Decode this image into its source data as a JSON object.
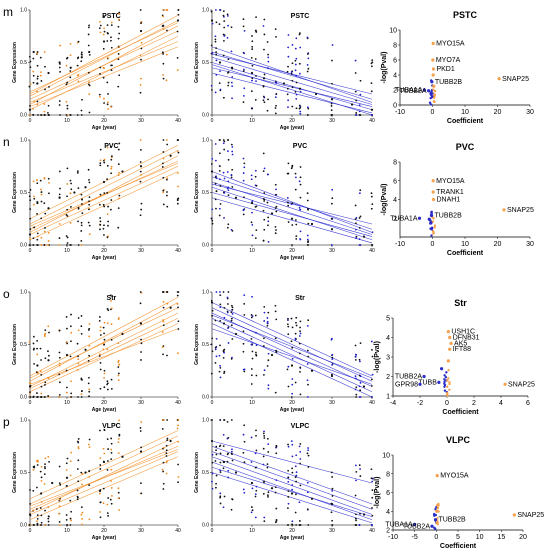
{
  "colors": {
    "up": "#F28A1E",
    "down": "#1F1FD0",
    "dot": "#111111",
    "volcano_up": "#F5A04A",
    "volcano_down": "#2B2BC8",
    "volcano_grey": "#9A9A9A"
  },
  "common": {
    "scatter_x_ticks": [
      "0",
      "10",
      "20",
      "30",
      "40"
    ],
    "scatter_y_ticks": [
      "0.0",
      "0.5",
      "1.0"
    ],
    "scatter_xlabel": "Age (year)",
    "scatter_ylabel": "Gene Expression",
    "volcano_xlabel": "Coefficient",
    "volcano_ylabel": "-log(Pval)"
  },
  "chart_data": [
    {
      "panel": "m",
      "type": "scatter",
      "title": "PSTC",
      "trend": "up",
      "xlim": [
        0,
        40
      ],
      "ylim": [
        0,
        1
      ],
      "series": [
        {
          "values": [
            [
              0,
              0.05
            ],
            [
              1,
              0.6
            ],
            [
              2,
              0.3
            ],
            [
              5,
              0.4
            ],
            [
              8,
              0.5
            ],
            [
              11,
              0.45
            ],
            [
              14,
              0.55
            ],
            [
              16,
              0.6
            ],
            [
              20,
              0.7
            ],
            [
              24,
              0.65
            ],
            [
              30,
              0.8
            ],
            [
              36,
              0.85
            ],
            [
              40,
              0.9
            ]
          ]
        }
      ],
      "fit_lines": [
        [
          0.1,
          0.85
        ],
        [
          0.15,
          0.8
        ],
        [
          0.05,
          0.75
        ],
        [
          0.2,
          0.95
        ],
        [
          0.12,
          0.7
        ],
        [
          0.18,
          0.9
        ],
        [
          0.08,
          0.65
        ],
        [
          0.22,
          0.88
        ]
      ]
    },
    {
      "panel": "m",
      "type": "scatter",
      "title": "PSTC",
      "trend": "down",
      "xlim": [
        0,
        40
      ],
      "ylim": [
        0,
        1
      ],
      "series": [
        {
          "values": [
            [
              0,
              0.9
            ],
            [
              2,
              0.5
            ],
            [
              5,
              0.45
            ],
            [
              10,
              0.4
            ],
            [
              13,
              0.35
            ],
            [
              18,
              0.3
            ],
            [
              22,
              0.25
            ],
            [
              26,
              0.2
            ],
            [
              30,
              0.15
            ],
            [
              35,
              0.1
            ],
            [
              40,
              0.05
            ]
          ]
        }
      ],
      "fit_lines": [
        [
          0.55,
          0.1
        ],
        [
          0.5,
          0.05
        ],
        [
          0.6,
          0.15
        ],
        [
          0.45,
          0.08
        ],
        [
          0.65,
          0.12
        ],
        [
          0.4,
          0.02
        ],
        [
          0.58,
          0.2
        ],
        [
          0.48,
          0.0
        ]
      ]
    },
    {
      "panel": "m",
      "type": "scatter",
      "title": "PSTC",
      "xlabel": "Coefficient",
      "ylabel": "-log(Pval)",
      "xlim": [
        -10,
        30
      ],
      "ylim": [
        0,
        10
      ],
      "x_ticks": [
        "-10",
        "0",
        "10",
        "20",
        "30"
      ],
      "y_ticks": [
        "0",
        "2",
        "4",
        "6",
        "8",
        "10"
      ],
      "points": [
        {
          "label": "MYO15A",
          "x": 0.2,
          "y": 8.2,
          "group": "up"
        },
        {
          "label": "MYO7A",
          "x": 0.1,
          "y": 6.0,
          "group": "up"
        },
        {
          "label": "PKD1",
          "x": 0.3,
          "y": 4.8,
          "group": "up"
        },
        {
          "label": "SNAP25",
          "x": 20.5,
          "y": 3.5,
          "group": "up"
        },
        {
          "label": "TUBB2B",
          "x": -0.2,
          "y": 3.1,
          "group": "down"
        },
        {
          "label": "TUBA1A",
          "x": -2.5,
          "y": 2.0,
          "group": "down"
        },
        {
          "label": "TUBB2A",
          "x": -1.2,
          "y": 1.9,
          "group": "down"
        },
        {
          "label": "",
          "x": 0.2,
          "y": 4.0,
          "group": "up"
        },
        {
          "label": "",
          "x": 0.4,
          "y": 2.5,
          "group": "up"
        }
      ]
    },
    {
      "panel": "n",
      "type": "scatter",
      "title": "PVC",
      "trend": "up",
      "xlim": [
        0,
        40
      ],
      "ylim": [
        0,
        1
      ],
      "series": [
        {
          "values": [
            [
              0,
              0.1
            ],
            [
              2,
              0.4
            ],
            [
              5,
              0.35
            ],
            [
              8,
              0.45
            ],
            [
              12,
              0.5
            ],
            [
              15,
              0.55
            ],
            [
              20,
              0.6
            ],
            [
              25,
              0.7
            ],
            [
              30,
              0.75
            ],
            [
              38,
              0.85
            ]
          ]
        }
      ],
      "fit_lines": [
        [
          0.15,
          0.8
        ],
        [
          0.1,
          0.75
        ],
        [
          0.2,
          0.9
        ],
        [
          0.05,
          0.7
        ],
        [
          0.25,
          0.95
        ],
        [
          0.12,
          0.85
        ],
        [
          0.18,
          0.78
        ]
      ]
    },
    {
      "panel": "n",
      "type": "scatter",
      "title": "PVC",
      "trend": "down",
      "xlim": [
        0,
        40
      ],
      "ylim": [
        0,
        1
      ],
      "series": [
        {
          "values": [
            [
              0,
              0.7
            ],
            [
              3,
              0.5
            ],
            [
              6,
              0.45
            ],
            [
              10,
              0.4
            ],
            [
              15,
              0.3
            ],
            [
              20,
              0.25
            ],
            [
              25,
              0.2
            ],
            [
              30,
              0.15
            ],
            [
              38,
              0.08
            ]
          ]
        }
      ],
      "fit_lines": [
        [
          0.6,
          0.1
        ],
        [
          0.55,
          0.05
        ],
        [
          0.65,
          0.15
        ],
        [
          0.5,
          0.08
        ],
        [
          0.7,
          0.12
        ],
        [
          0.45,
          0.02
        ],
        [
          0.58,
          0.2
        ]
      ]
    },
    {
      "panel": "n",
      "type": "scatter",
      "title": "PVC",
      "xlabel": "Coefficient",
      "ylabel": "-log(Pval)",
      "xlim": [
        -10,
        30
      ],
      "ylim": [
        0,
        8
      ],
      "x_ticks": [
        "-10",
        "0",
        "10",
        "20",
        "30"
      ],
      "y_ticks": [
        "2",
        "4",
        "6",
        "8"
      ],
      "points": [
        {
          "label": "MYO15A",
          "x": 0.2,
          "y": 6.0,
          "group": "up"
        },
        {
          "label": "TRANK1",
          "x": 0.2,
          "y": 4.8,
          "group": "up"
        },
        {
          "label": "DNAH1",
          "x": 0.3,
          "y": 4.0,
          "group": "up"
        },
        {
          "label": "SNAP25",
          "x": 22.0,
          "y": 2.9,
          "group": "up"
        },
        {
          "label": "TUBB2B",
          "x": -0.3,
          "y": 2.3,
          "group": "down"
        },
        {
          "label": "TUBA1A",
          "x": -4.0,
          "y": 2.0,
          "group": "down"
        },
        {
          "label": "",
          "x": -1.0,
          "y": 1.9,
          "group": "down"
        },
        {
          "label": "",
          "x": -0.5,
          "y": 1.5,
          "group": "down"
        }
      ]
    },
    {
      "panel": "o",
      "type": "scatter",
      "title": "Str",
      "trend": "up",
      "xlim": [
        0,
        40
      ],
      "ylim": [
        0,
        1
      ],
      "series": [
        {
          "values": [
            [
              0,
              0.1
            ],
            [
              2,
              0.3
            ],
            [
              5,
              0.35
            ],
            [
              10,
              0.4
            ],
            [
              15,
              0.45
            ],
            [
              20,
              0.5
            ],
            [
              25,
              0.6
            ],
            [
              30,
              0.7
            ],
            [
              38,
              0.85
            ]
          ]
        }
      ],
      "fit_lines": [
        [
          0.1,
          0.8
        ],
        [
          0.05,
          0.7
        ],
        [
          0.15,
          0.9
        ],
        [
          0.08,
          0.75
        ],
        [
          0.2,
          0.95
        ],
        [
          0.12,
          0.65
        ],
        [
          0.18,
          0.85
        ]
      ]
    },
    {
      "panel": "o",
      "type": "scatter",
      "title": "Str",
      "trend": "down",
      "xlim": [
        0,
        40
      ],
      "ylim": [
        0,
        1
      ],
      "series": [
        {
          "values": [
            [
              0,
              0.9
            ],
            [
              3,
              0.7
            ],
            [
              6,
              0.6
            ],
            [
              10,
              0.5
            ],
            [
              15,
              0.4
            ],
            [
              20,
              0.3
            ],
            [
              25,
              0.25
            ],
            [
              30,
              0.2
            ],
            [
              38,
              0.1
            ]
          ]
        }
      ],
      "fit_lines": [
        [
          0.85,
          0.15
        ],
        [
          0.8,
          0.1
        ],
        [
          0.75,
          0.05
        ],
        [
          0.9,
          0.2
        ],
        [
          0.7,
          0.0
        ],
        [
          0.65,
          0.12
        ],
        [
          0.78,
          0.18
        ]
      ]
    },
    {
      "panel": "o",
      "type": "scatter",
      "title": "Str",
      "xlabel": "Coefficient",
      "ylabel": "-log(Pval)",
      "xlim": [
        -4,
        6
      ],
      "ylim": [
        1,
        5
      ],
      "x_ticks": [
        "-4",
        "-2",
        "0",
        "2",
        "4",
        "6"
      ],
      "y_ticks": [
        "1",
        "2",
        "3",
        "4",
        "5"
      ],
      "points": [
        {
          "label": "USH1C",
          "x": 0.1,
          "y": 4.3,
          "group": "up"
        },
        {
          "label": "DFNB31",
          "x": 0.2,
          "y": 4.0,
          "group": "up"
        },
        {
          "label": "AK5",
          "x": 0.3,
          "y": 3.7,
          "group": "up"
        },
        {
          "label": "IFT88",
          "x": 0.2,
          "y": 3.4,
          "group": "up"
        },
        {
          "label": "SNAP25",
          "x": 4.3,
          "y": 1.6,
          "group": "up"
        },
        {
          "label": "TUBB2A",
          "x": -1.7,
          "y": 2.0,
          "group": "down"
        },
        {
          "label": "TUBB",
          "x": -0.6,
          "y": 1.7,
          "group": "down"
        },
        {
          "label": "GPR98",
          "x": -2.0,
          "y": 1.6,
          "group": "down"
        },
        {
          "label": "",
          "x": -0.4,
          "y": 2.4,
          "group": "down"
        },
        {
          "label": "",
          "x": 0.1,
          "y": 2.8,
          "group": "up"
        }
      ]
    },
    {
      "panel": "p",
      "type": "scatter",
      "title": "VLPC",
      "trend": "up",
      "xlim": [
        0,
        40
      ],
      "ylim": [
        0,
        1
      ],
      "series": [
        {
          "values": [
            [
              0,
              0.1
            ],
            [
              3,
              0.3
            ],
            [
              6,
              0.4
            ],
            [
              10,
              0.45
            ],
            [
              15,
              0.5
            ],
            [
              20,
              0.6
            ],
            [
              25,
              0.65
            ],
            [
              30,
              0.7
            ],
            [
              38,
              0.8
            ]
          ]
        }
      ],
      "fit_lines": [
        [
          0.15,
          0.75
        ],
        [
          0.1,
          0.7
        ],
        [
          0.2,
          0.85
        ],
        [
          0.05,
          0.65
        ],
        [
          0.25,
          0.9
        ],
        [
          0.12,
          0.8
        ],
        [
          0.18,
          0.72
        ]
      ]
    },
    {
      "panel": "p",
      "type": "scatter",
      "title": "VLPC",
      "trend": "down",
      "xlim": [
        0,
        40
      ],
      "ylim": [
        0,
        1
      ],
      "series": [
        {
          "values": [
            [
              0,
              0.8
            ],
            [
              3,
              0.6
            ],
            [
              6,
              0.5
            ],
            [
              10,
              0.4
            ],
            [
              15,
              0.35
            ],
            [
              20,
              0.3
            ],
            [
              25,
              0.25
            ],
            [
              30,
              0.2
            ],
            [
              38,
              0.1
            ]
          ]
        }
      ],
      "fit_lines": [
        [
          0.65,
          0.1
        ],
        [
          0.6,
          0.05
        ],
        [
          0.7,
          0.15
        ],
        [
          0.55,
          0.08
        ],
        [
          0.75,
          0.2
        ],
        [
          0.5,
          0.02
        ],
        [
          0.8,
          0.4
        ]
      ]
    },
    {
      "panel": "p",
      "type": "scatter",
      "title": "VLPC",
      "xlabel": "Coefficient",
      "ylabel": "-log(Pval)",
      "xlim": [
        -10,
        20
      ],
      "ylim": [
        2,
        10
      ],
      "x_ticks": [
        "-10",
        "-5",
        "0",
        "5",
        "10",
        "15",
        "20"
      ],
      "y_ticks": [
        "2",
        "4",
        "6",
        "8",
        "10"
      ],
      "points": [
        {
          "label": "MYO15A",
          "x": 0.2,
          "y": 7.8,
          "group": "up"
        },
        {
          "label": "SNAP25",
          "x": 18.0,
          "y": 3.6,
          "group": "up"
        },
        {
          "label": "TUBB2B",
          "x": -0.2,
          "y": 3.1,
          "group": "down"
        },
        {
          "label": "TUBA1A",
          "x": -5.0,
          "y": 2.6,
          "group": "down"
        },
        {
          "label": "TUBB2A",
          "x": -1.0,
          "y": 2.4,
          "group": "down"
        },
        {
          "label": "",
          "x": 0.1,
          "y": 4.0,
          "group": "up"
        },
        {
          "label": "",
          "x": 0.2,
          "y": 2.8,
          "group": "up"
        }
      ]
    }
  ],
  "panel_letters": [
    "m",
    "n",
    "o",
    "p"
  ]
}
